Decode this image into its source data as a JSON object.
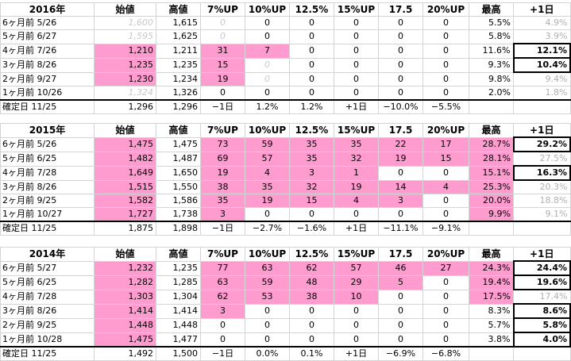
{
  "headers": [
    "始値",
    "高値",
    "7%UP",
    "10%UP",
    "12.5%",
    "15%UP",
    "17.5",
    "20%UP",
    "最高",
    "+1日"
  ],
  "tables": [
    {
      "year": "2016年",
      "rows": [
        {
          "label": "6ヶ月前  5/26",
          "cells": [
            "1,600",
            "1,615",
            "0",
            "0",
            "0",
            "0",
            "0",
            "0",
            "5.5%",
            "4.9%"
          ]
        },
        {
          "label": "5ヶ月前  6/27",
          "cells": [
            "1,595",
            "1,625",
            "0",
            "0",
            "0",
            "0",
            "0",
            "0",
            "5.8%",
            "3.9%"
          ]
        },
        {
          "label": "4ヶ月前  7/26",
          "cells": [
            "1,210",
            "1,211",
            "31",
            "7",
            "0",
            "0",
            "0",
            "0",
            "11.6%",
            "12.1%"
          ]
        },
        {
          "label": "3ヶ月前  8/26",
          "cells": [
            "1,235",
            "1,235",
            "15",
            "0",
            "0",
            "0",
            "0",
            "0",
            "9.3%",
            "10.4%"
          ]
        },
        {
          "label": "2ヶ月前  9/27",
          "cells": [
            "1,230",
            "1,234",
            "19",
            "0",
            "0",
            "0",
            "0",
            "0",
            "9.8%",
            "9.4%"
          ]
        },
        {
          "label": "1ヶ月前  10/26",
          "cells": [
            "1,324",
            "1,326",
            "0",
            "0",
            "0",
            "0",
            "0",
            "0",
            "2.0%",
            "1.8%"
          ]
        },
        {
          "label": "確定日  11/25",
          "cells": [
            "1,296",
            "1,296",
            "−1日",
            "1.2%",
            "1.2%",
            "+1日",
            "−10.0%",
            "−5.5%",
            "",
            ""
          ]
        }
      ]
    },
    {
      "year": "2015年",
      "rows": [
        {
          "label": "6ヶ月前  5/26",
          "cells": [
            "1,475",
            "1,475",
            "73",
            "59",
            "35",
            "35",
            "22",
            "17",
            "28.7%",
            "29.2%"
          ]
        },
        {
          "label": "5ヶ月前  6/25",
          "cells": [
            "1,482",
            "1,487",
            "69",
            "57",
            "35",
            "32",
            "19",
            "15",
            "28.1%",
            "27.5%"
          ]
        },
        {
          "label": "4ヶ月前  7/28",
          "cells": [
            "1,649",
            "1,650",
            "19",
            "4",
            "3",
            "1",
            "0",
            "0",
            "15.1%",
            "16.3%"
          ]
        },
        {
          "label": "3ヶ月前  8/26",
          "cells": [
            "1,515",
            "1,550",
            "38",
            "35",
            "32",
            "19",
            "14",
            "4",
            "25.3%",
            "20.3%"
          ]
        },
        {
          "label": "2ヶ月前  9/25",
          "cells": [
            "1,582",
            "1,586",
            "35",
            "19",
            "15",
            "4",
            "3",
            "0",
            "20.0%",
            "18.8%"
          ]
        },
        {
          "label": "1ヶ月前  10/27",
          "cells": [
            "1,727",
            "1,738",
            "3",
            "0",
            "0",
            "0",
            "0",
            "0",
            "9.9%",
            "9.1%"
          ]
        },
        {
          "label": "確定日  11/25",
          "cells": [
            "1,875",
            "1,898",
            "−1日",
            "−2.7%",
            "−1.6%",
            "+1日",
            "−11.1%",
            "−9.1%",
            "",
            ""
          ]
        }
      ]
    },
    {
      "year": "2014年",
      "rows": [
        {
          "label": "6ヶ月前  5/27",
          "cells": [
            "1,232",
            "1,235",
            "77",
            "63",
            "62",
            "57",
            "46",
            "27",
            "24.3%",
            "24.4%"
          ]
        },
        {
          "label": "5ヶ月前  6/25",
          "cells": [
            "1,282",
            "1,285",
            "63",
            "59",
            "48",
            "29",
            "5",
            "0",
            "19.4%",
            "19.6%"
          ]
        },
        {
          "label": "4ヶ月前  7/28",
          "cells": [
            "1,303",
            "1,304",
            "62",
            "53",
            "38",
            "10",
            "0",
            "0",
            "17.5%",
            "17.4%"
          ]
        },
        {
          "label": "3ヶ月前  8/26",
          "cells": [
            "1,414",
            "1,414",
            "3",
            "0",
            "0",
            "0",
            "0",
            "0",
            "8.3%",
            "8.6%"
          ]
        },
        {
          "label": "2ヶ月前  9/25",
          "cells": [
            "1,448",
            "1,448",
            "0",
            "0",
            "0",
            "0",
            "0",
            "0",
            "5.7%",
            "5.8%"
          ]
        },
        {
          "label": "1ヶ月前  10/28",
          "cells": [
            "1,475",
            "1,477",
            "0",
            "0",
            "0",
            "0",
            "0",
            "0",
            "3.8%",
            "4.0%"
          ]
        },
        {
          "label": "確定日  11/25",
          "cells": [
            "1,492",
            "1,500",
            "−1日",
            "0.0%",
            "0.1%",
            "+1日",
            "−6.9%",
            "−6.8%",
            "",
            ""
          ]
        }
      ]
    }
  ],
  "colors": {
    "highlight": "#ff9ccf",
    "gray_text": "#b0b0b0"
  }
}
